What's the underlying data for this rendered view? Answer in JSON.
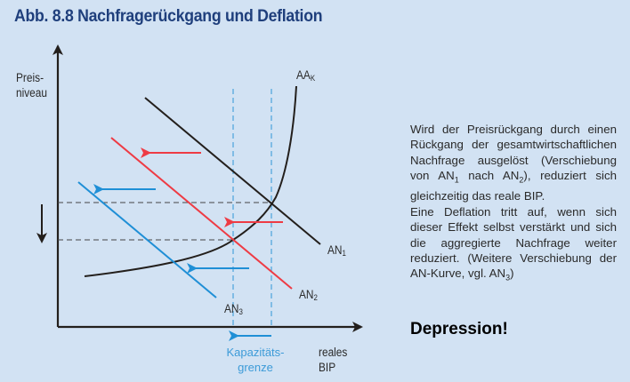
{
  "title": "Abb. 8.8  Nachfragerückgang und Deflation",
  "axes": {
    "y_label_1": "Preis-",
    "y_label_2": "niveau",
    "x_label_1": "reales",
    "x_label_2": "BIP"
  },
  "curves": {
    "aa": {
      "base": "AA",
      "sub": "K"
    },
    "an1": {
      "base": "AN",
      "sub": "1"
    },
    "an2": {
      "base": "AN",
      "sub": "2"
    },
    "an3": {
      "base": "AN",
      "sub": "3"
    }
  },
  "capacity": {
    "line1": "Kapazitäts-",
    "line2": "grenze"
  },
  "explanation": {
    "p1_a": "Wird der Preisrückgang durch einen Rückgang der gesamtwirtschaftlichen Nachfrage ausgelöst (Verschiebung von AN",
    "p1_s1": "1",
    "p1_b": " nach AN",
    "p1_s2": "2",
    "p1_c": "), reduziert sich gleichzeitig das reale BIP.",
    "p2": "Eine Deflation tritt auf, wenn sich dieser Effekt selbst verstärkt und sich die aggregierte Nachfrage weiter reduziert. (Weitere Verschiebung der AN-Kurve, vgl. AN",
    "p2_s": "3",
    "p2_end": ")"
  },
  "conclusion": "Depression!",
  "colors": {
    "title": "#1f3f7c",
    "red": "#ee3b44",
    "blue": "#1f8fd6",
    "dash": "#4aa3dc",
    "ink": "#231f1c"
  }
}
